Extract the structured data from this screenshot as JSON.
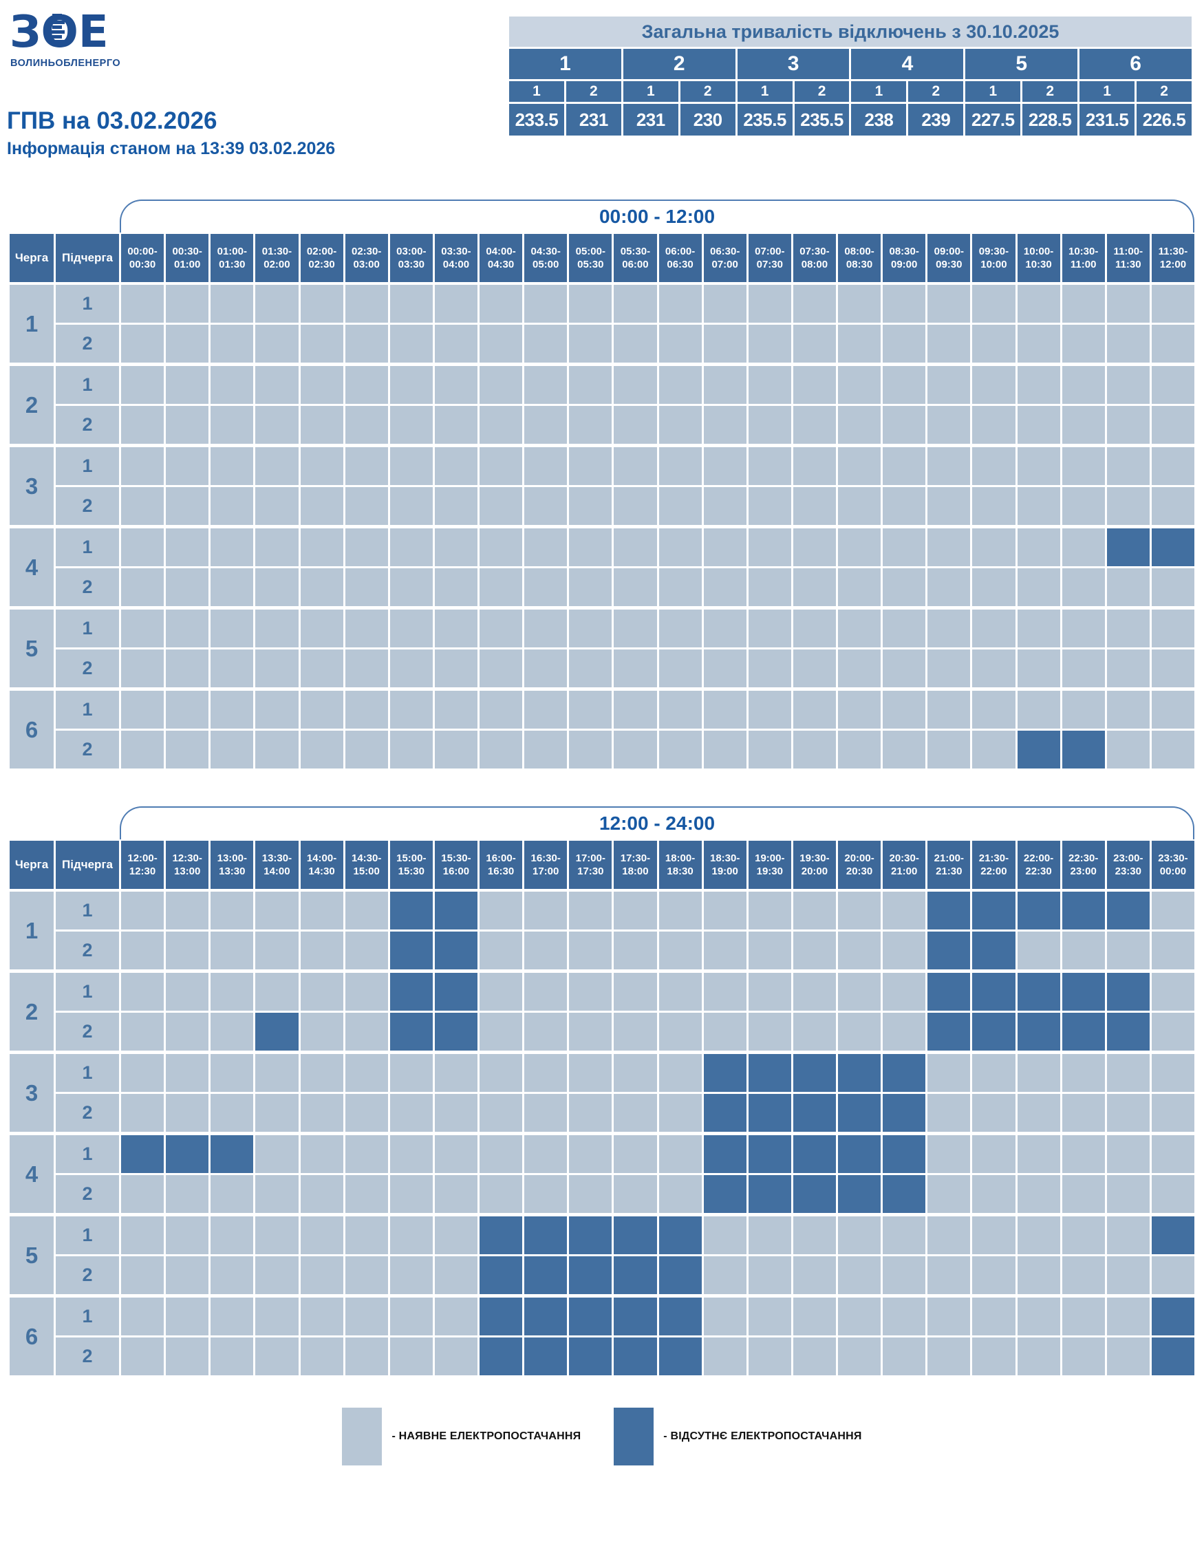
{
  "logo": {
    "text": "ЗОЕ",
    "subtext": "ВОЛИНЬОБЛЕНЕРГО"
  },
  "header": {
    "title": "ГПВ на 03.02.2026",
    "subtitle": "Інформація станом на 13:39 03.02.2026"
  },
  "summary": {
    "title": "Загальна тривалість відключень з 30.10.2025",
    "sub_labels": [
      "1",
      "2"
    ],
    "groups": [
      {
        "label": "1",
        "values": [
          "233.5",
          "231"
        ]
      },
      {
        "label": "2",
        "values": [
          "231",
          "230"
        ]
      },
      {
        "label": "3",
        "values": [
          "235.5",
          "235.5"
        ]
      },
      {
        "label": "4",
        "values": [
          "238",
          "239"
        ]
      },
      {
        "label": "5",
        "values": [
          "227.5",
          "228.5"
        ]
      },
      {
        "label": "6",
        "values": [
          "231.5",
          "226.5"
        ]
      }
    ]
  },
  "table_headers": {
    "queue": "Черга",
    "subqueue": "Підчерга"
  },
  "legend": {
    "on_label": "- НАЯВНЕ ЕЛЕКТРОПОСТАЧАННЯ",
    "off_label": "- ВІДСУТНЄ ЕЛЕКТРОПОСТАЧАННЯ",
    "on_color": "#b7c6d5",
    "off_color": "#426fa0"
  },
  "chart_data": [
    {
      "type": "heatmap",
      "title": "00:00 - 12:00",
      "value_scale": "0 = power available, 1 = power off",
      "time_slots": [
        "00:00-00:30",
        "00:30-01:00",
        "01:00-01:30",
        "01:30-02:00",
        "02:00-02:30",
        "02:30-03:00",
        "03:00-03:30",
        "03:30-04:00",
        "04:00-04:30",
        "04:30-05:00",
        "05:00-05:30",
        "05:30-06:00",
        "06:00-06:30",
        "06:30-07:00",
        "07:00-07:30",
        "07:30-08:00",
        "08:00-08:30",
        "08:30-09:00",
        "09:00-09:30",
        "09:30-10:00",
        "10:00-10:30",
        "10:30-11:00",
        "11:00-11:30",
        "11:30-12:00"
      ],
      "rows": [
        {
          "queue": "1",
          "subqueue": "1",
          "outage": [
            0,
            0,
            0,
            0,
            0,
            0,
            0,
            0,
            0,
            0,
            0,
            0,
            0,
            0,
            0,
            0,
            0,
            0,
            0,
            0,
            0,
            0,
            0,
            0
          ]
        },
        {
          "queue": "1",
          "subqueue": "2",
          "outage": [
            0,
            0,
            0,
            0,
            0,
            0,
            0,
            0,
            0,
            0,
            0,
            0,
            0,
            0,
            0,
            0,
            0,
            0,
            0,
            0,
            0,
            0,
            0,
            0
          ]
        },
        {
          "queue": "2",
          "subqueue": "1",
          "outage": [
            0,
            0,
            0,
            0,
            0,
            0,
            0,
            0,
            0,
            0,
            0,
            0,
            0,
            0,
            0,
            0,
            0,
            0,
            0,
            0,
            0,
            0,
            0,
            0
          ]
        },
        {
          "queue": "2",
          "subqueue": "2",
          "outage": [
            0,
            0,
            0,
            0,
            0,
            0,
            0,
            0,
            0,
            0,
            0,
            0,
            0,
            0,
            0,
            0,
            0,
            0,
            0,
            0,
            0,
            0,
            0,
            0
          ]
        },
        {
          "queue": "3",
          "subqueue": "1",
          "outage": [
            0,
            0,
            0,
            0,
            0,
            0,
            0,
            0,
            0,
            0,
            0,
            0,
            0,
            0,
            0,
            0,
            0,
            0,
            0,
            0,
            0,
            0,
            0,
            0
          ]
        },
        {
          "queue": "3",
          "subqueue": "2",
          "outage": [
            0,
            0,
            0,
            0,
            0,
            0,
            0,
            0,
            0,
            0,
            0,
            0,
            0,
            0,
            0,
            0,
            0,
            0,
            0,
            0,
            0,
            0,
            0,
            0
          ]
        },
        {
          "queue": "4",
          "subqueue": "1",
          "outage": [
            0,
            0,
            0,
            0,
            0,
            0,
            0,
            0,
            0,
            0,
            0,
            0,
            0,
            0,
            0,
            0,
            0,
            0,
            0,
            0,
            0,
            0,
            1,
            1
          ]
        },
        {
          "queue": "4",
          "subqueue": "2",
          "outage": [
            0,
            0,
            0,
            0,
            0,
            0,
            0,
            0,
            0,
            0,
            0,
            0,
            0,
            0,
            0,
            0,
            0,
            0,
            0,
            0,
            0,
            0,
            0,
            0
          ]
        },
        {
          "queue": "5",
          "subqueue": "1",
          "outage": [
            0,
            0,
            0,
            0,
            0,
            0,
            0,
            0,
            0,
            0,
            0,
            0,
            0,
            0,
            0,
            0,
            0,
            0,
            0,
            0,
            0,
            0,
            0,
            0
          ]
        },
        {
          "queue": "5",
          "subqueue": "2",
          "outage": [
            0,
            0,
            0,
            0,
            0,
            0,
            0,
            0,
            0,
            0,
            0,
            0,
            0,
            0,
            0,
            0,
            0,
            0,
            0,
            0,
            0,
            0,
            0,
            0
          ]
        },
        {
          "queue": "6",
          "subqueue": "1",
          "outage": [
            0,
            0,
            0,
            0,
            0,
            0,
            0,
            0,
            0,
            0,
            0,
            0,
            0,
            0,
            0,
            0,
            0,
            0,
            0,
            0,
            0,
            0,
            0,
            0
          ]
        },
        {
          "queue": "6",
          "subqueue": "2",
          "outage": [
            0,
            0,
            0,
            0,
            0,
            0,
            0,
            0,
            0,
            0,
            0,
            0,
            0,
            0,
            0,
            0,
            0,
            0,
            0,
            0,
            1,
            1,
            0,
            0
          ]
        }
      ]
    },
    {
      "type": "heatmap",
      "title": "12:00 - 24:00",
      "value_scale": "0 = power available, 1 = power off",
      "time_slots": [
        "12:00-12:30",
        "12:30-13:00",
        "13:00-13:30",
        "13:30-14:00",
        "14:00-14:30",
        "14:30-15:00",
        "15:00-15:30",
        "15:30-16:00",
        "16:00-16:30",
        "16:30-17:00",
        "17:00-17:30",
        "17:30-18:00",
        "18:00-18:30",
        "18:30-19:00",
        "19:00-19:30",
        "19:30-20:00",
        "20:00-20:30",
        "20:30-21:00",
        "21:00-21:30",
        "21:30-22:00",
        "22:00-22:30",
        "22:30-23:00",
        "23:00-23:30",
        "23:30-00:00"
      ],
      "rows": [
        {
          "queue": "1",
          "subqueue": "1",
          "outage": [
            0,
            0,
            0,
            0,
            0,
            0,
            1,
            1,
            0,
            0,
            0,
            0,
            0,
            0,
            0,
            0,
            0,
            0,
            1,
            1,
            1,
            1,
            1,
            0
          ]
        },
        {
          "queue": "1",
          "subqueue": "2",
          "outage": [
            0,
            0,
            0,
            0,
            0,
            0,
            1,
            1,
            0,
            0,
            0,
            0,
            0,
            0,
            0,
            0,
            0,
            0,
            1,
            1,
            0,
            0,
            0,
            0
          ]
        },
        {
          "queue": "2",
          "subqueue": "1",
          "outage": [
            0,
            0,
            0,
            0,
            0,
            0,
            1,
            1,
            0,
            0,
            0,
            0,
            0,
            0,
            0,
            0,
            0,
            0,
            1,
            1,
            1,
            1,
            1,
            0
          ]
        },
        {
          "queue": "2",
          "subqueue": "2",
          "outage": [
            0,
            0,
            0,
            1,
            0,
            0,
            1,
            1,
            0,
            0,
            0,
            0,
            0,
            0,
            0,
            0,
            0,
            0,
            1,
            1,
            1,
            1,
            1,
            0
          ]
        },
        {
          "queue": "3",
          "subqueue": "1",
          "outage": [
            0,
            0,
            0,
            0,
            0,
            0,
            0,
            0,
            0,
            0,
            0,
            0,
            0,
            1,
            1,
            1,
            1,
            1,
            0,
            0,
            0,
            0,
            0,
            0
          ]
        },
        {
          "queue": "3",
          "subqueue": "2",
          "outage": [
            0,
            0,
            0,
            0,
            0,
            0,
            0,
            0,
            0,
            0,
            0,
            0,
            0,
            1,
            1,
            1,
            1,
            1,
            0,
            0,
            0,
            0,
            0,
            0
          ]
        },
        {
          "queue": "4",
          "subqueue": "1",
          "outage": [
            1,
            1,
            1,
            0,
            0,
            0,
            0,
            0,
            0,
            0,
            0,
            0,
            0,
            1,
            1,
            1,
            1,
            1,
            0,
            0,
            0,
            0,
            0,
            0
          ]
        },
        {
          "queue": "4",
          "subqueue": "2",
          "outage": [
            0,
            0,
            0,
            0,
            0,
            0,
            0,
            0,
            0,
            0,
            0,
            0,
            0,
            1,
            1,
            1,
            1,
            1,
            0,
            0,
            0,
            0,
            0,
            0
          ]
        },
        {
          "queue": "5",
          "subqueue": "1",
          "outage": [
            0,
            0,
            0,
            0,
            0,
            0,
            0,
            0,
            1,
            1,
            1,
            1,
            1,
            0,
            0,
            0,
            0,
            0,
            0,
            0,
            0,
            0,
            0,
            1
          ]
        },
        {
          "queue": "5",
          "subqueue": "2",
          "outage": [
            0,
            0,
            0,
            0,
            0,
            0,
            0,
            0,
            1,
            1,
            1,
            1,
            1,
            0,
            0,
            0,
            0,
            0,
            0,
            0,
            0,
            0,
            0,
            0
          ]
        },
        {
          "queue": "6",
          "subqueue": "1",
          "outage": [
            0,
            0,
            0,
            0,
            0,
            0,
            0,
            0,
            1,
            1,
            1,
            1,
            1,
            0,
            0,
            0,
            0,
            0,
            0,
            0,
            0,
            0,
            0,
            1
          ]
        },
        {
          "queue": "6",
          "subqueue": "2",
          "outage": [
            0,
            0,
            0,
            0,
            0,
            0,
            0,
            0,
            1,
            1,
            1,
            1,
            1,
            0,
            0,
            0,
            0,
            0,
            0,
            0,
            0,
            0,
            0,
            1
          ]
        }
      ]
    }
  ]
}
